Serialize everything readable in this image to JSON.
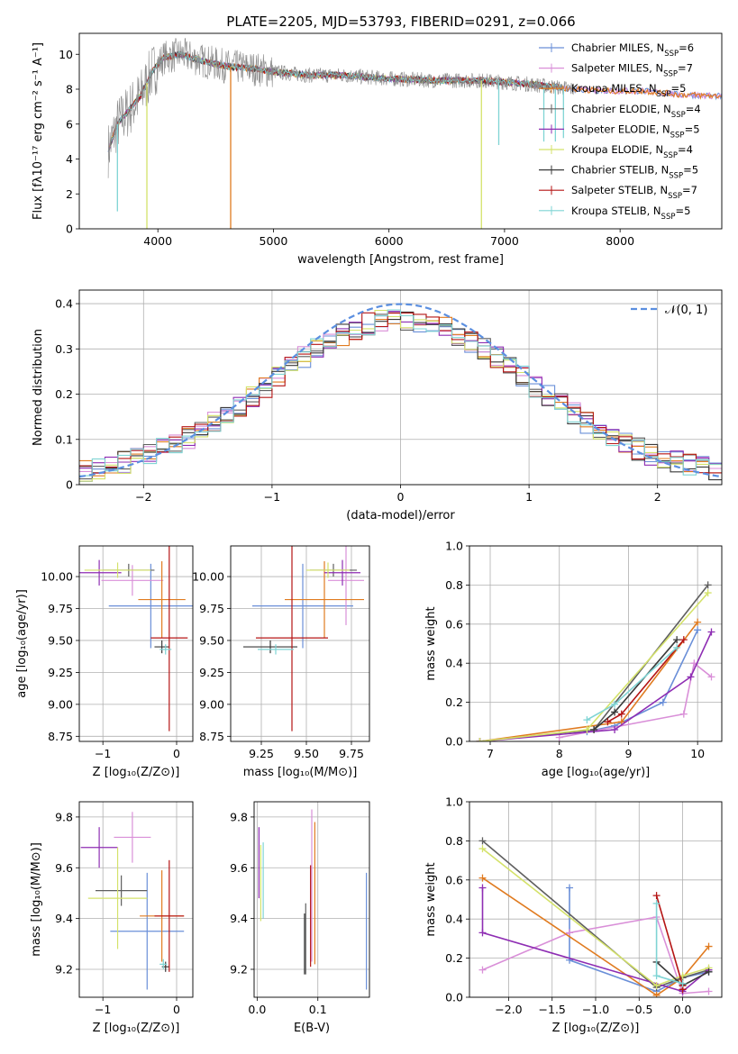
{
  "figure": {
    "title": "PLATE=2205, MJD=53793, FIBERID=0291, z=0.066"
  },
  "colors": {
    "chabrier_miles": "#6a8fd8",
    "salpeter_miles": "#d98fd8",
    "kroupa_miles": "#e07b20",
    "chabrier_elodie": "#5f5f5f",
    "salpeter_elodie": "#8e2db3",
    "kroupa_elodie": "#d4e26a",
    "chabrier_stelib": "#3a3a3a",
    "salpeter_stelib": "#b51515",
    "kroupa_stelib": "#7fd4d4",
    "gauss": "#5b8fe0",
    "data": "#8a8a8a",
    "green_model": "#5a8a5a",
    "pink_model": "#e07bb0"
  },
  "chart_data": [
    {
      "id": "spectrum",
      "type": "line",
      "title": "PLATE=2205, MJD=53793, FIBERID=0291, z=0.066",
      "xlabel": "wavelength [Angstrom, rest frame]",
      "ylabel": "Flux [fλ10⁻¹⁷ erg cm⁻² s⁻¹ A⁻¹]",
      "xlim": [
        3320,
        8880
      ],
      "ylim": [
        0,
        11.2
      ],
      "xticks": [
        4000,
        5000,
        6000,
        7000,
        8000
      ],
      "yticks": [
        0,
        2,
        4,
        6,
        8,
        10
      ],
      "legend_position": "right",
      "legend": [
        {
          "key": "chabrier_miles",
          "label": "Chabrier MILES, N",
          "sub": "SSP",
          "n": "=6"
        },
        {
          "key": "salpeter_miles",
          "label": "Salpeter MILES, N",
          "sub": "SSP",
          "n": "=7"
        },
        {
          "key": "kroupa_miles",
          "label": "Kroupa MILES, N",
          "sub": "SSP",
          "n": "=5"
        },
        {
          "key": "chabrier_elodie",
          "label": "Chabrier ELODIE, N",
          "sub": "SSP",
          "n": "=4"
        },
        {
          "key": "salpeter_elodie",
          "label": "Salpeter ELODIE, N",
          "sub": "SSP",
          "n": "=5"
        },
        {
          "key": "kroupa_elodie",
          "label": "Kroupa ELODIE, N",
          "sub": "SSP",
          "n": "=4"
        },
        {
          "key": "chabrier_stelib",
          "label": "Chabrier STELIB, N",
          "sub": "SSP",
          "n": "=5"
        },
        {
          "key": "salpeter_stelib",
          "label": "Salpeter STELIB, N",
          "sub": "SSP",
          "n": "=7"
        },
        {
          "key": "kroupa_stelib",
          "label": "Kroupa STELIB, N",
          "sub": "SSP",
          "n": "=5"
        }
      ],
      "continuum": [
        [
          3570,
          4.5
        ],
        [
          3650,
          6.0
        ],
        [
          3750,
          6.8
        ],
        [
          3850,
          7.6
        ],
        [
          3950,
          9.0
        ],
        [
          4050,
          9.8
        ],
        [
          4200,
          10.0
        ],
        [
          4400,
          9.6
        ],
        [
          4600,
          9.3
        ],
        [
          4800,
          9.2
        ],
        [
          5000,
          9.0
        ],
        [
          5300,
          8.8
        ],
        [
          5600,
          8.8
        ],
        [
          6000,
          8.6
        ],
        [
          6400,
          8.5
        ],
        [
          6800,
          8.5
        ],
        [
          7200,
          8.3
        ],
        [
          7600,
          8.0
        ],
        [
          7900,
          7.9
        ],
        [
          8200,
          7.9
        ],
        [
          8500,
          7.7
        ],
        [
          8880,
          7.6
        ]
      ],
      "spikes": [
        [
          4630,
          0
        ],
        [
          3905,
          0
        ],
        [
          6800,
          0
        ],
        [
          7340,
          5.0
        ],
        [
          7440,
          5.0
        ],
        [
          7510,
          5.2
        ],
        [
          3650,
          1.0
        ],
        [
          6950,
          4.8
        ]
      ]
    },
    {
      "id": "residuals",
      "type": "histogram",
      "xlabel": "(data-model)/error",
      "ylabel": "Normed distribution",
      "xlim": [
        -2.5,
        2.5
      ],
      "ylim": [
        0,
        0.43
      ],
      "xticks": [
        -2,
        -1,
        0,
        1,
        2
      ],
      "yticks": [
        0.0,
        0.1,
        0.2,
        0.3,
        0.4
      ],
      "bin_width": 0.1,
      "gauss_label": "𝒩(0, 1)",
      "legend_position": "top-right"
    },
    {
      "id": "age_vs_Z",
      "type": "scatter",
      "xlabel": "Z [log₁₀(Z/Z⊙)]",
      "ylabel": "age  [log₁₀(age/yr)]",
      "xlim": [
        -1.32,
        0.22
      ],
      "ylim": [
        8.71,
        10.24
      ],
      "xticks": [
        -1,
        0
      ],
      "yticks": [
        8.75,
        9.0,
        9.25,
        9.5,
        9.75,
        10.0
      ],
      "ytick_labels": [
        "8.75",
        "9.00",
        "9.25",
        "9.50",
        "9.75",
        "10.00"
      ],
      "points": [
        {
          "key": "chabrier_miles",
          "x": -0.35,
          "y": 9.77,
          "xe": 0.57,
          "ye": 0.33
        },
        {
          "key": "salpeter_miles",
          "x": -0.6,
          "y": 9.97,
          "xe": 0.42,
          "ye": 0.12
        },
        {
          "key": "kroupa_miles",
          "x": -0.2,
          "y": 9.82,
          "xe": 0.32,
          "ye": 0.3
        },
        {
          "key": "chabrier_elodie",
          "x": -0.65,
          "y": 10.05,
          "xe": 0.35,
          "ye": 0.05
        },
        {
          "key": "salpeter_elodie",
          "x": -1.05,
          "y": 10.03,
          "xe": 0.3,
          "ye": 0.1
        },
        {
          "key": "kroupa_elodie",
          "x": -0.8,
          "y": 10.05,
          "xe": 0.45,
          "ye": 0.06
        },
        {
          "key": "chabrier_stelib",
          "x": -0.2,
          "y": 9.45,
          "xe": 0.1,
          "ye": 0.05
        },
        {
          "key": "salpeter_stelib",
          "x": -0.1,
          "y": 9.52,
          "xe": 0.25,
          "ye": 0.73
        },
        {
          "key": "kroupa_stelib",
          "x": -0.15,
          "y": 9.43,
          "xe": 0.08,
          "ye": 0.04
        }
      ]
    },
    {
      "id": "age_vs_mass",
      "type": "scatter",
      "xlabel": "mass [log₁₀(M/M⊙)]",
      "ylabel": "",
      "xlim": [
        9.08,
        9.85
      ],
      "ylim": [
        8.71,
        10.24
      ],
      "xticks": [
        9.25,
        9.5,
        9.75
      ],
      "xtick_labels": [
        "9.25",
        "9.50",
        "9.75"
      ],
      "yticks": [
        8.75,
        9.0,
        9.25,
        9.5,
        9.75,
        10.0
      ],
      "ytick_labels": [
        "8.75",
        "9.00",
        "9.25",
        "9.50",
        "9.75",
        "10.00"
      ],
      "points": [
        {
          "key": "chabrier_miles",
          "x": 9.48,
          "y": 9.77,
          "xe": 0.28,
          "ye": 0.33
        },
        {
          "key": "salpeter_miles",
          "x": 9.72,
          "y": 9.97,
          "xe": 0.1,
          "ye": 0.35
        },
        {
          "key": "kroupa_miles",
          "x": 9.6,
          "y": 9.82,
          "xe": 0.22,
          "ye": 0.3
        },
        {
          "key": "chabrier_elodie",
          "x": 9.65,
          "y": 10.05,
          "xe": 0.13,
          "ye": 0.05
        },
        {
          "key": "salpeter_elodie",
          "x": 9.7,
          "y": 10.03,
          "xe": 0.1,
          "ye": 0.1
        },
        {
          "key": "kroupa_elodie",
          "x": 9.62,
          "y": 10.05,
          "xe": 0.12,
          "ye": 0.06
        },
        {
          "key": "chabrier_stelib",
          "x": 9.3,
          "y": 9.45,
          "xe": 0.15,
          "ye": 0.05
        },
        {
          "key": "salpeter_stelib",
          "x": 9.42,
          "y": 9.52,
          "xe": 0.2,
          "ye": 0.73
        },
        {
          "key": "kroupa_stelib",
          "x": 9.33,
          "y": 9.43,
          "xe": 0.1,
          "ye": 0.04
        }
      ]
    },
    {
      "id": "massweight_vs_age",
      "type": "line",
      "xlabel": "age  [log₁₀(age/yr)]",
      "ylabel": "mass weight",
      "xlim": [
        6.7,
        10.35
      ],
      "ylim": [
        0,
        1.0
      ],
      "xticks": [
        7,
        8,
        9,
        10
      ],
      "yticks": [
        0.0,
        0.2,
        0.4,
        0.6,
        0.8,
        1.0
      ],
      "ytick_labels": [
        "0.0",
        "0.2",
        "0.4",
        "0.6",
        "0.8",
        "1.0"
      ],
      "series": [
        {
          "key": "chabrier_miles",
          "x": [
            8.4,
            8.8,
            9.5,
            10.0
          ],
          "y": [
            0.05,
            0.08,
            0.2,
            0.57
          ]
        },
        {
          "key": "salpeter_miles",
          "x": [
            8.0,
            9.8,
            9.95,
            10.2
          ],
          "y": [
            0.02,
            0.14,
            0.4,
            0.33
          ]
        },
        {
          "key": "kroupa_miles",
          "x": [
            6.85,
            8.9,
            10.0
          ],
          "y": [
            0.0,
            0.1,
            0.61
          ]
        },
        {
          "key": "chabrier_elodie",
          "x": [
            6.85,
            8.5,
            10.15
          ],
          "y": [
            0.0,
            0.06,
            0.8
          ]
        },
        {
          "key": "salpeter_elodie",
          "x": [
            6.85,
            8.8,
            9.9,
            10.2
          ],
          "y": [
            0.0,
            0.06,
            0.33,
            0.56
          ]
        },
        {
          "key": "kroupa_elodie",
          "x": [
            6.85,
            8.4,
            10.15
          ],
          "y": [
            0.0,
            0.06,
            0.76
          ]
        },
        {
          "key": "chabrier_stelib",
          "x": [
            8.5,
            8.8,
            9.7
          ],
          "y": [
            0.06,
            0.15,
            0.52
          ]
        },
        {
          "key": "salpeter_stelib",
          "x": [
            8.7,
            8.9,
            9.8
          ],
          "y": [
            0.1,
            0.14,
            0.52
          ]
        },
        {
          "key": "kroupa_stelib",
          "x": [
            8.4,
            8.8,
            9.7
          ],
          "y": [
            0.11,
            0.19,
            0.48
          ]
        }
      ]
    },
    {
      "id": "mass_vs_Z",
      "type": "scatter",
      "xlabel": "Z [log₁₀(Z/Z⊙)]",
      "ylabel": "mass [log₁₀(M/M⊙)]",
      "xlim": [
        -1.32,
        0.22
      ],
      "ylim": [
        9.09,
        9.86
      ],
      "xticks": [
        -1,
        0
      ],
      "yticks": [
        9.2,
        9.4,
        9.6,
        9.8
      ],
      "ytick_labels": [
        "9.2",
        "9.4",
        "9.6",
        "9.8"
      ],
      "points": [
        {
          "key": "chabrier_miles",
          "x": -0.4,
          "y": 9.35,
          "xe": 0.5,
          "ye": 0.23
        },
        {
          "key": "salpeter_miles",
          "x": -0.6,
          "y": 9.72,
          "xe": 0.25,
          "ye": 0.1
        },
        {
          "key": "kroupa_miles",
          "x": -0.2,
          "y": 9.41,
          "xe": 0.3,
          "ye": 0.18
        },
        {
          "key": "chabrier_elodie",
          "x": -0.75,
          "y": 9.51,
          "xe": 0.35,
          "ye": 0.06
        },
        {
          "key": "salpeter_elodie",
          "x": -1.05,
          "y": 9.68,
          "xe": 0.25,
          "ye": 0.08
        },
        {
          "key": "kroupa_elodie",
          "x": -0.8,
          "y": 9.48,
          "xe": 0.4,
          "ye": 0.2
        },
        {
          "key": "chabrier_stelib",
          "x": -0.15,
          "y": 9.21,
          "xe": 0.05,
          "ye": 0.02
        },
        {
          "key": "salpeter_stelib",
          "x": -0.1,
          "y": 9.41,
          "xe": 0.2,
          "ye": 0.22
        },
        {
          "key": "kroupa_stelib",
          "x": -0.18,
          "y": 9.22,
          "xe": 0.05,
          "ye": 0.02
        }
      ]
    },
    {
      "id": "mass_vs_ebv",
      "type": "scatter",
      "xlabel": "E(B-V)",
      "ylabel": "",
      "xlim": [
        -0.005,
        0.185
      ],
      "ylim": [
        9.09,
        9.86
      ],
      "xticks": [
        0.0,
        0.1
      ],
      "xtick_labels": [
        "0.0",
        "0.1"
      ],
      "yticks": [
        9.2,
        9.4,
        9.6,
        9.8
      ],
      "ytick_labels": [
        "9.2",
        "9.4",
        "9.6",
        "9.8"
      ],
      "points": [
        {
          "key": "chabrier_miles",
          "x": 0.18,
          "y": 9.35,
          "xe": 0,
          "ye": 0.23
        },
        {
          "key": "salpeter_miles",
          "x": 0.09,
          "y": 9.53,
          "xe": 0,
          "ye": 0.3
        },
        {
          "key": "kroupa_miles",
          "x": 0.095,
          "y": 9.5,
          "xe": 0,
          "ye": 0.28
        },
        {
          "key": "chabrier_elodie",
          "x": 0.08,
          "y": 9.32,
          "xe": 0,
          "ye": 0.14
        },
        {
          "key": "salpeter_elodie",
          "x": 0.003,
          "y": 9.62,
          "xe": 0,
          "ye": 0.14
        },
        {
          "key": "kroupa_elodie",
          "x": 0.006,
          "y": 9.54,
          "xe": 0,
          "ye": 0.15
        },
        {
          "key": "chabrier_stelib",
          "x": 0.078,
          "y": 9.3,
          "xe": 0,
          "ye": 0.12
        },
        {
          "key": "salpeter_stelib",
          "x": 0.088,
          "y": 9.41,
          "xe": 0,
          "ye": 0.2
        },
        {
          "key": "kroupa_stelib",
          "x": 0.01,
          "y": 9.55,
          "xe": 0,
          "ye": 0.15
        }
      ]
    },
    {
      "id": "massweight_vs_Z",
      "type": "line",
      "xlabel": "Z [log₁₀(Z/Z⊙)]",
      "ylabel": "mass weight",
      "xlim": [
        -2.45,
        0.45
      ],
      "ylim": [
        0,
        1.0
      ],
      "xticks": [
        -2.0,
        -1.5,
        -1.0,
        -0.5,
        0.0
      ],
      "xtick_labels": [
        "−2.0",
        "−1.5",
        "−1.0",
        "−0.5",
        "0.0"
      ],
      "yticks": [
        0.0,
        0.2,
        0.4,
        0.6,
        0.8,
        1.0
      ],
      "ytick_labels": [
        "0.0",
        "0.2",
        "0.4",
        "0.6",
        "0.8",
        "1.0"
      ],
      "series": [
        {
          "key": "chabrier_miles",
          "x": [
            -1.3,
            -1.3,
            -0.3,
            0.0,
            0.3
          ],
          "y": [
            0.56,
            0.19,
            0.03,
            0.1,
            0.13
          ]
        },
        {
          "key": "salpeter_miles",
          "x": [
            -2.3,
            -1.3,
            -0.3,
            0.0,
            0.3
          ],
          "y": [
            0.14,
            0.33,
            0.41,
            0.02,
            0.03
          ]
        },
        {
          "key": "kroupa_miles",
          "x": [
            -2.3,
            -0.3,
            0.0,
            0.3
          ],
          "y": [
            0.61,
            0.01,
            0.1,
            0.26
          ]
        },
        {
          "key": "chabrier_elodie",
          "x": [
            -2.3,
            -0.3,
            0.0,
            0.3
          ],
          "y": [
            0.8,
            0.05,
            0.1,
            0.14
          ]
        },
        {
          "key": "salpeter_elodie",
          "x": [
            -2.3,
            -2.3,
            0.0,
            0.3
          ],
          "y": [
            0.56,
            0.33,
            0.03,
            0.14
          ]
        },
        {
          "key": "kroupa_elodie",
          "x": [
            -2.3,
            -0.3,
            0.0,
            0.3
          ],
          "y": [
            0.76,
            0.06,
            0.11,
            0.15
          ]
        },
        {
          "key": "chabrier_stelib",
          "x": [
            -0.3,
            0.0,
            0.3
          ],
          "y": [
            0.18,
            0.06,
            0.13
          ]
        },
        {
          "key": "salpeter_stelib",
          "x": [
            -0.3,
            0.0,
            0.0
          ],
          "y": [
            0.52,
            0.06,
            0.04
          ]
        },
        {
          "key": "kroupa_stelib",
          "x": [
            -0.3,
            -0.3,
            0.0
          ],
          "y": [
            0.48,
            0.11,
            0.07
          ]
        }
      ]
    }
  ]
}
